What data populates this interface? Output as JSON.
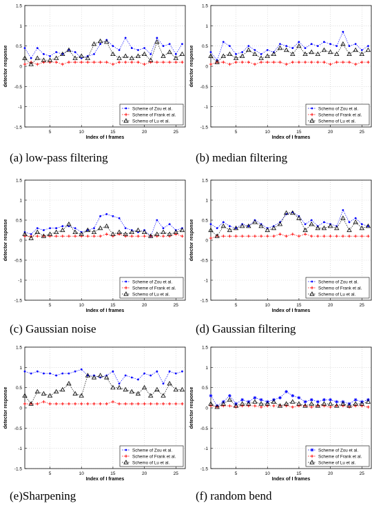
{
  "chart_data": [
    {
      "type": "line",
      "caption": "(a) low-pass filtering",
      "xlabel": "Index of I frames",
      "ylabel": "detector response",
      "xlim": [
        1,
        26.5
      ],
      "ylim": [
        -1.5,
        1.5
      ],
      "xticks": [
        5,
        10,
        15,
        20,
        25
      ],
      "yticks": [
        -1.5,
        -1,
        -0.5,
        0,
        0.5,
        1,
        1.5
      ],
      "legend_position": "bottom-right",
      "x": [
        1,
        2,
        3,
        4,
        5,
        6,
        7,
        8,
        9,
        10,
        11,
        12,
        13,
        14,
        15,
        16,
        17,
        18,
        19,
        20,
        21,
        22,
        23,
        24,
        25,
        26
      ],
      "series": [
        {
          "name": "Scheme of Zou et al.",
          "color": "#0000ff",
          "marker": "dot",
          "values": [
            0.45,
            0.2,
            0.45,
            0.3,
            0.25,
            0.35,
            0.3,
            0.4,
            0.35,
            0.2,
            0.25,
            0.3,
            0.55,
            0.65,
            0.5,
            0.4,
            0.7,
            0.45,
            0.4,
            0.45,
            0.3,
            0.7,
            0.5,
            0.55,
            0.3,
            0.55
          ]
        },
        {
          "name": "Scheme of Frank et al.",
          "color": "#ff0000",
          "marker": "plus",
          "values": [
            0.05,
            0.1,
            0.05,
            0.1,
            0.1,
            0.1,
            0.05,
            0.1,
            0.1,
            0.1,
            0.1,
            0.1,
            0.1,
            0.1,
            0.05,
            0.1,
            0.1,
            0.1,
            0.1,
            0.05,
            0.1,
            0.1,
            0.1,
            0.1,
            0.1,
            0.1
          ]
        },
        {
          "name": "Schemo of Lu et al.",
          "color": "#000000",
          "marker": "triangle",
          "values": [
            0.2,
            0.05,
            0.2,
            0.15,
            0.15,
            0.2,
            0.3,
            0.4,
            0.2,
            0.25,
            0.2,
            0.55,
            0.62,
            0.6,
            0.3,
            0.2,
            0.25,
            0.2,
            0.25,
            0.3,
            0.15,
            0.6,
            0.25,
            0.35,
            0.2,
            0.3
          ]
        }
      ]
    },
    {
      "type": "line",
      "caption": "(b) median filtering",
      "xlabel": "Index of I frames",
      "ylabel": "detector response",
      "xlim": [
        1,
        26.5
      ],
      "ylim": [
        -1.5,
        1.5
      ],
      "xticks": [
        5,
        10,
        15,
        20,
        25
      ],
      "yticks": [
        -1.5,
        -1,
        -0.5,
        0,
        0.5,
        1,
        1.5
      ],
      "legend_position": "bottom-right",
      "x": [
        1,
        2,
        3,
        4,
        5,
        6,
        7,
        8,
        9,
        10,
        11,
        12,
        13,
        14,
        15,
        16,
        17,
        18,
        19,
        20,
        21,
        22,
        23,
        24,
        25,
        26
      ],
      "series": [
        {
          "name": "Schemo of Zou et al.",
          "color": "#0000ff",
          "marker": "dot",
          "values": [
            0.35,
            0.15,
            0.6,
            0.5,
            0.3,
            0.35,
            0.5,
            0.4,
            0.3,
            0.4,
            0.35,
            0.55,
            0.5,
            0.45,
            0.6,
            0.45,
            0.55,
            0.5,
            0.6,
            0.55,
            0.5,
            0.85,
            0.5,
            0.55,
            0.4,
            0.5
          ]
        },
        {
          "name": "Schemo of Frank et al.",
          "color": "#ff0000",
          "marker": "plus",
          "values": [
            0.05,
            0.1,
            0.1,
            0.05,
            0.1,
            0.1,
            0.1,
            0.05,
            0.1,
            0.1,
            0.1,
            0.1,
            0.05,
            0.1,
            0.1,
            0.1,
            0.1,
            0.1,
            0.1,
            0.05,
            0.1,
            0.1,
            0.1,
            0.05,
            0.1,
            0.1
          ]
        },
        {
          "name": "Schemo of Lu et al.",
          "color": "#000000",
          "marker": "triangle",
          "values": [
            0.25,
            0.1,
            0.25,
            0.3,
            0.2,
            0.25,
            0.4,
            0.3,
            0.2,
            0.25,
            0.3,
            0.45,
            0.4,
            0.3,
            0.5,
            0.3,
            0.35,
            0.3,
            0.4,
            0.35,
            0.3,
            0.55,
            0.3,
            0.4,
            0.3,
            0.4
          ]
        }
      ]
    },
    {
      "type": "line",
      "caption": "(c) Gaussian noise",
      "xlabel": "Index of I frames",
      "ylabel": "detector response",
      "xlim": [
        1,
        26.5
      ],
      "ylim": [
        -1.5,
        1.5
      ],
      "xticks": [
        5,
        10,
        15,
        20,
        25
      ],
      "yticks": [
        -1.5,
        -1,
        -0.5,
        0,
        0.5,
        1,
        1.5
      ],
      "legend_position": "bottom-right",
      "x": [
        1,
        2,
        3,
        4,
        5,
        6,
        7,
        8,
        9,
        10,
        11,
        12,
        13,
        14,
        15,
        16,
        17,
        18,
        19,
        20,
        21,
        22,
        23,
        24,
        25,
        26
      ],
      "series": [
        {
          "name": "Scheme of Zou et al.",
          "color": "#0000ff",
          "marker": "dot",
          "values": [
            0.2,
            0.15,
            0.3,
            0.25,
            0.3,
            0.3,
            0.35,
            0.35,
            0.3,
            0.2,
            0.25,
            0.3,
            0.6,
            0.65,
            0.6,
            0.55,
            0.3,
            0.25,
            0.2,
            0.25,
            0.1,
            0.5,
            0.3,
            0.4,
            0.25,
            0.3
          ]
        },
        {
          "name": "Scheme of Frank et al.",
          "color": "#ff0000",
          "marker": "plus",
          "values": [
            0.1,
            0.1,
            0.1,
            0.1,
            0.1,
            0.1,
            0.1,
            0.1,
            0.1,
            0.1,
            0.1,
            0.1,
            0.1,
            0.15,
            0.1,
            0.15,
            0.1,
            0.1,
            0.1,
            0.1,
            0.1,
            0.1,
            0.1,
            0.1,
            0.15,
            0.1
          ]
        },
        {
          "name": "Schemo of Lu et al.",
          "color": "#000000",
          "marker": "triangle",
          "values": [
            0.15,
            0.05,
            0.2,
            0.1,
            0.15,
            0.2,
            0.25,
            0.4,
            0.2,
            0.15,
            0.25,
            0.2,
            0.3,
            0.35,
            0.15,
            0.2,
            0.15,
            0.2,
            0.25,
            0.2,
            0.1,
            0.15,
            0.2,
            0.15,
            0.2,
            0.25
          ]
        }
      ]
    },
    {
      "type": "line",
      "caption": "(d) Gaussian filtering",
      "xlabel": "Index of I frames",
      "ylabel": "detector response",
      "xlim": [
        1,
        26.5
      ],
      "ylim": [
        -1.5,
        1.5
      ],
      "xticks": [
        5,
        10,
        15,
        20,
        25
      ],
      "yticks": [
        -1.5,
        -1,
        -0.5,
        0,
        0.5,
        1,
        1.5
      ],
      "legend_position": "bottom-right",
      "x": [
        1,
        2,
        3,
        4,
        5,
        6,
        7,
        8,
        9,
        10,
        11,
        12,
        13,
        14,
        15,
        16,
        17,
        18,
        19,
        20,
        21,
        22,
        23,
        24,
        25,
        26
      ],
      "series": [
        {
          "name": "Schemo of Zou et al.",
          "color": "#0000ff",
          "marker": "dot",
          "values": [
            0.4,
            0.3,
            0.45,
            0.35,
            0.3,
            0.4,
            0.35,
            0.5,
            0.4,
            0.3,
            0.35,
            0.45,
            0.65,
            0.7,
            0.6,
            0.4,
            0.5,
            0.35,
            0.45,
            0.4,
            0.35,
            0.75,
            0.45,
            0.55,
            0.4,
            0.35
          ]
        },
        {
          "name": "Schemo of Frank et al.",
          "color": "#ff0000",
          "marker": "plus",
          "values": [
            0.05,
            0.1,
            0.1,
            0.1,
            0.1,
            0.1,
            0.1,
            0.1,
            0.1,
            0.1,
            0.1,
            0.15,
            0.1,
            0.15,
            0.1,
            0.15,
            0.1,
            0.1,
            0.1,
            0.1,
            0.1,
            0.1,
            0.1,
            0.1,
            0.1,
            0.1
          ]
        },
        {
          "name": "Schemo of Lu et al.",
          "color": "#000000",
          "marker": "triangle",
          "values": [
            0.25,
            0.1,
            0.35,
            0.25,
            0.3,
            0.35,
            0.35,
            0.45,
            0.35,
            0.25,
            0.3,
            0.4,
            0.68,
            0.68,
            0.55,
            0.25,
            0.4,
            0.3,
            0.3,
            0.35,
            0.3,
            0.55,
            0.25,
            0.45,
            0.3,
            0.35
          ]
        }
      ]
    },
    {
      "type": "line",
      "caption": "(e)Sharpening",
      "xlabel": "Index of I frames",
      "ylabel": "detector response",
      "xlim": [
        1,
        26.5
      ],
      "ylim": [
        -1.5,
        1.5
      ],
      "xticks": [
        5,
        10,
        15,
        20,
        25
      ],
      "yticks": [
        -1.5,
        -1,
        -0.5,
        0,
        0.5,
        1,
        1.5
      ],
      "legend_position": "bottom-right",
      "x": [
        1,
        2,
        3,
        4,
        5,
        6,
        7,
        8,
        9,
        10,
        11,
        12,
        13,
        14,
        15,
        16,
        17,
        18,
        19,
        20,
        21,
        22,
        23,
        24,
        25,
        26
      ],
      "series": [
        {
          "name": "Scheme of Zou et al.",
          "color": "#0000ff",
          "marker": "dot",
          "values": [
            0.9,
            0.85,
            0.9,
            0.85,
            0.85,
            0.8,
            0.85,
            0.85,
            0.9,
            0.95,
            0.8,
            0.8,
            0.75,
            0.8,
            0.9,
            0.6,
            0.8,
            0.75,
            0.7,
            0.85,
            0.8,
            0.9,
            0.6,
            0.9,
            0.85,
            0.9
          ]
        },
        {
          "name": "Scheme of Frank et al.",
          "color": "#ff0000",
          "marker": "plus",
          "values": [
            0.1,
            0.1,
            0.1,
            0.15,
            0.1,
            0.1,
            0.1,
            0.1,
            0.1,
            0.1,
            0.1,
            0.1,
            0.1,
            0.1,
            0.15,
            0.1,
            0.1,
            0.1,
            0.1,
            0.1,
            0.1,
            0.1,
            0.1,
            0.1,
            0.1,
            0.1
          ]
        },
        {
          "name": "Schemo of Lu et al.",
          "color": "#000000",
          "marker": "triangle",
          "values": [
            0.3,
            0.1,
            0.4,
            0.35,
            0.3,
            0.4,
            0.45,
            0.6,
            0.35,
            0.3,
            0.8,
            0.75,
            0.8,
            0.75,
            0.5,
            0.5,
            0.45,
            0.4,
            0.35,
            0.5,
            0.3,
            0.45,
            0.3,
            0.6,
            0.45,
            0.45
          ]
        }
      ]
    },
    {
      "type": "line",
      "caption": "(f) random bend",
      "xlabel": "Index of I frames",
      "ylabel": "detector response",
      "xlim": [
        1,
        26.5
      ],
      "ylim": [
        -1.5,
        1.5
      ],
      "xticks": [
        5,
        10,
        15,
        20,
        25
      ],
      "yticks": [
        -1.5,
        -1,
        -0.5,
        0,
        0.5,
        1,
        1.5
      ],
      "legend_position": "bottom-right",
      "x": [
        1,
        2,
        3,
        4,
        5,
        6,
        7,
        8,
        9,
        10,
        11,
        12,
        13,
        14,
        15,
        16,
        17,
        18,
        19,
        20,
        21,
        22,
        23,
        24,
        25,
        26
      ],
      "series": [
        {
          "name": "Scheme of Zou et al.",
          "color": "#0000ff",
          "marker": "star",
          "values": [
            0.3,
            0.05,
            0.15,
            0.3,
            0.1,
            0.2,
            0.15,
            0.25,
            0.2,
            0.15,
            0.2,
            0.25,
            0.4,
            0.3,
            0.25,
            0.15,
            0.2,
            0.15,
            0.2,
            0.2,
            0.15,
            0.15,
            0.1,
            0.2,
            0.15,
            0.2
          ]
        },
        {
          "name": "Scheme of Frank et al.",
          "color": "#ff0000",
          "marker": "plus",
          "values": [
            0.05,
            0.02,
            0.05,
            0.05,
            0.02,
            0.05,
            0.05,
            0.05,
            0.02,
            0.05,
            0.05,
            0.05,
            0.05,
            0.02,
            0.05,
            0.05,
            0.02,
            0.05,
            0.05,
            0.02,
            0.05,
            0.05,
            0.02,
            0.05,
            0.05,
            0.02
          ]
        },
        {
          "name": "Scheme of Lu et al.",
          "color": "#000000",
          "marker": "triangle",
          "values": [
            0.1,
            0.02,
            0.1,
            0.2,
            0.05,
            0.1,
            0.1,
            0.15,
            0.1,
            0.1,
            0.15,
            0.05,
            0.1,
            0.15,
            0.1,
            0.05,
            0.1,
            0.05,
            0.1,
            0.1,
            0.05,
            0.1,
            0.05,
            0.1,
            0.1,
            0.15
          ]
        }
      ]
    }
  ]
}
